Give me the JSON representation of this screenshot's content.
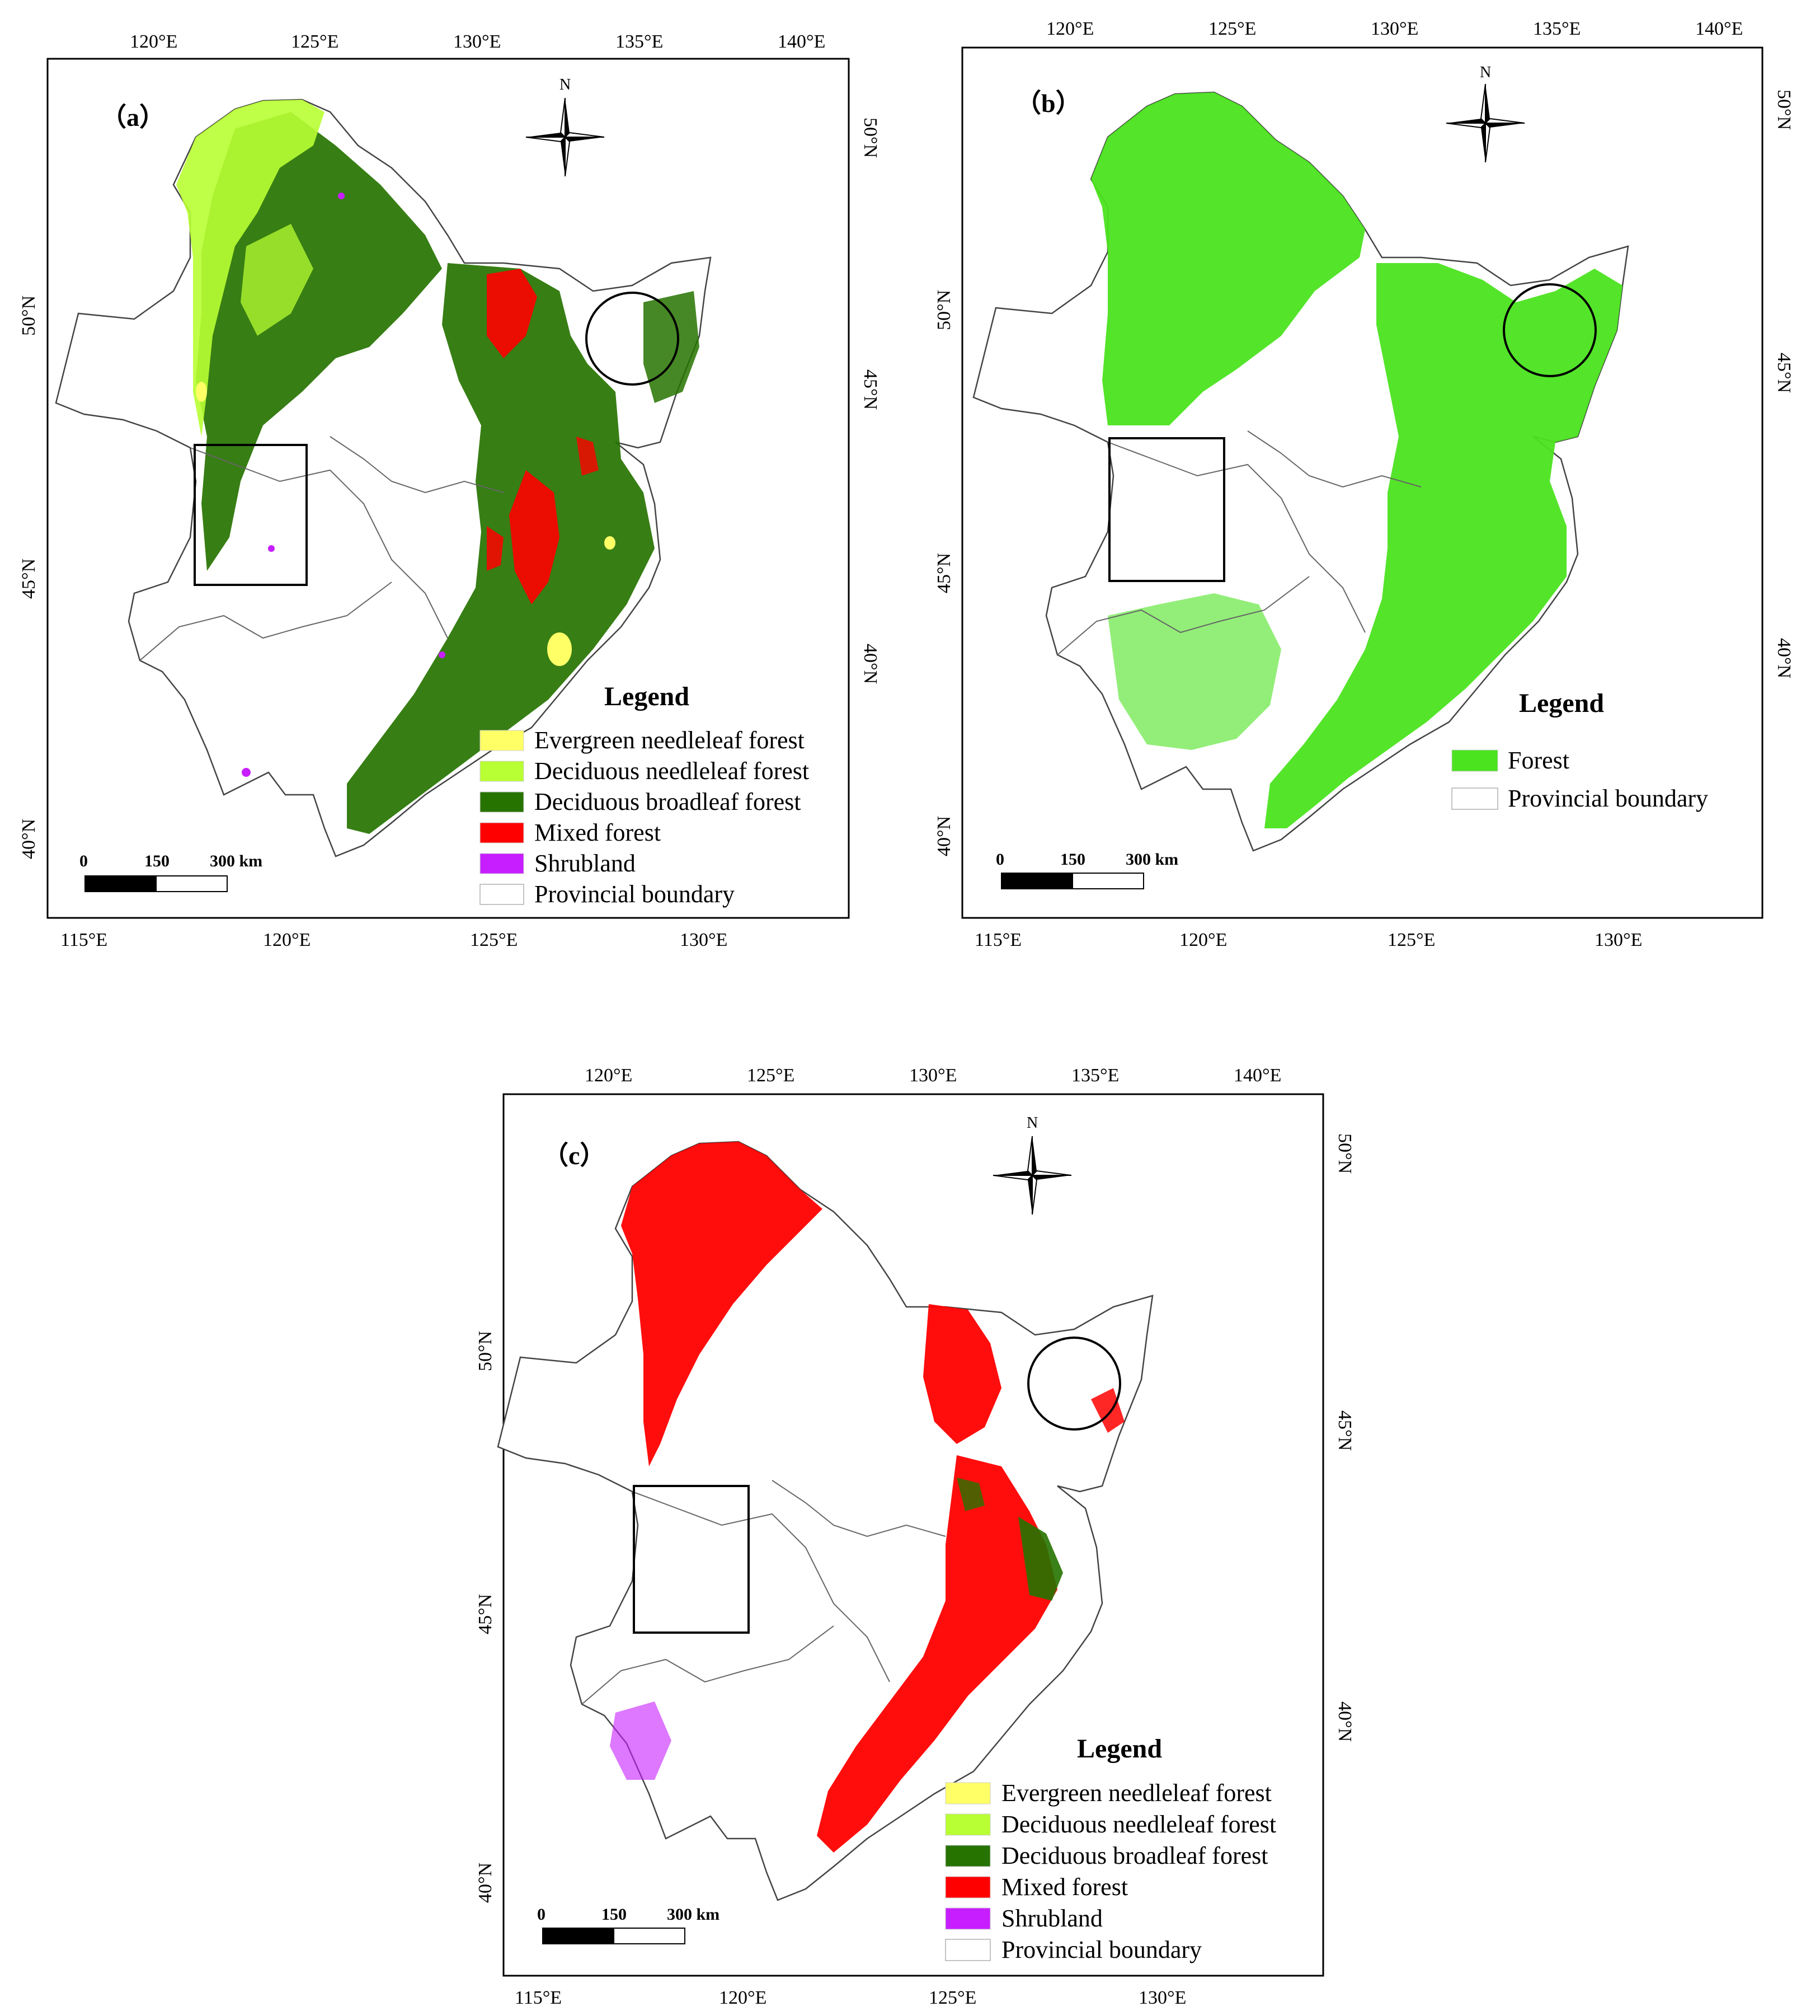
{
  "colors": {
    "evergreen_needleleaf": "#ffff66",
    "deciduous_needleleaf": "#b8ff33",
    "deciduous_broadleaf": "#267300",
    "mixed": "#ff0000",
    "shrubland": "#c71eff",
    "forest": "#4be31f",
    "boundary": "#555555",
    "frame": "#000000"
  },
  "panels": {
    "a": {
      "label": "（a）",
      "top_ticks": [
        "120°E",
        "125°E",
        "130°E",
        "135°E",
        "140°E"
      ],
      "bottom_ticks": [
        "115°E",
        "120°E",
        "125°E",
        "130°E"
      ],
      "left_ticks": [
        "50°N",
        "45°N",
        "40°N"
      ],
      "right_ticks": [
        "50°N",
        "45°N",
        "40°N"
      ],
      "north": "N",
      "scale": [
        "0",
        "150",
        "300 km"
      ],
      "legend_title": "Legend",
      "legend": [
        {
          "label": "Evergreen needleleaf forest",
          "color": "#ffff66"
        },
        {
          "label": "Deciduous needleleaf forest",
          "color": "#b8ff33"
        },
        {
          "label": "Deciduous broadleaf forest",
          "color": "#267300"
        },
        {
          "label": "Mixed forest",
          "color": "#ff0000"
        },
        {
          "label": "Shrubland",
          "color": "#c71eff"
        },
        {
          "label": "Provincial boundary",
          "color": "#ffffff"
        }
      ]
    },
    "b": {
      "label": "（b）",
      "top_ticks": [
        "120°E",
        "125°E",
        "130°E",
        "135°E",
        "140°E"
      ],
      "bottom_ticks": [
        "115°E",
        "120°E",
        "125°E",
        "130°E"
      ],
      "left_ticks": [
        "50°N",
        "45°N",
        "40°N"
      ],
      "right_ticks": [
        "50°N",
        "45°N",
        "40°N"
      ],
      "north": "N",
      "scale": [
        "0",
        "150",
        "300 km"
      ],
      "legend_title": "Legend",
      "legend": [
        {
          "label": "Forest",
          "color": "#4be31f"
        },
        {
          "label": "Provincial boundary",
          "color": "#ffffff"
        }
      ]
    },
    "c": {
      "label": "（c）",
      "top_ticks": [
        "120°E",
        "125°E",
        "130°E",
        "135°E",
        "140°E"
      ],
      "bottom_ticks": [
        "115°E",
        "120°E",
        "125°E",
        "130°E"
      ],
      "left_ticks": [
        "50°N",
        "45°N",
        "40°N"
      ],
      "right_ticks": [
        "50°N",
        "45°N",
        "40°N"
      ],
      "north": "N",
      "scale": [
        "0",
        "150",
        "300 km"
      ],
      "legend_title": "Legend",
      "legend": [
        {
          "label": "Evergreen needleleaf forest",
          "color": "#ffff66"
        },
        {
          "label": "Deciduous needleleaf forest",
          "color": "#b8ff33"
        },
        {
          "label": "Deciduous broadleaf forest",
          "color": "#267300"
        },
        {
          "label": "Mixed forest",
          "color": "#ff0000"
        },
        {
          "label": "Shrubland",
          "color": "#c71eff"
        },
        {
          "label": "Provincial boundary",
          "color": "#ffffff"
        }
      ]
    }
  }
}
